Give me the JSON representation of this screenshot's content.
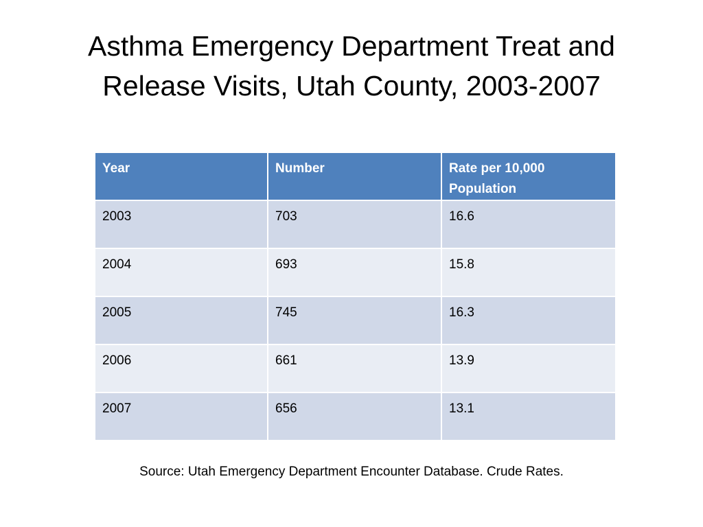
{
  "slide": {
    "title_line1": "Asthma Emergency Department Treat and",
    "title_line2": "Release Visits, Utah County, 2003-2007",
    "source": "Source: Utah Emergency Department Encounter Database. Crude Rates."
  },
  "table": {
    "headers": [
      "Year",
      "Number",
      "Rate per 10,000 Population"
    ],
    "rows": [
      [
        "2003",
        "703",
        "16.6"
      ],
      [
        "2004",
        "693",
        "15.8"
      ],
      [
        "2005",
        "745",
        "16.3"
      ],
      [
        "2006",
        "661",
        "13.9"
      ],
      [
        "2007",
        "656",
        "13.1"
      ]
    ]
  },
  "colors": {
    "header_bg": "#4f81bd",
    "header_text": "#ffffff",
    "row_band_dark": "#d0d8e8",
    "row_band_light": "#e9edf4"
  }
}
